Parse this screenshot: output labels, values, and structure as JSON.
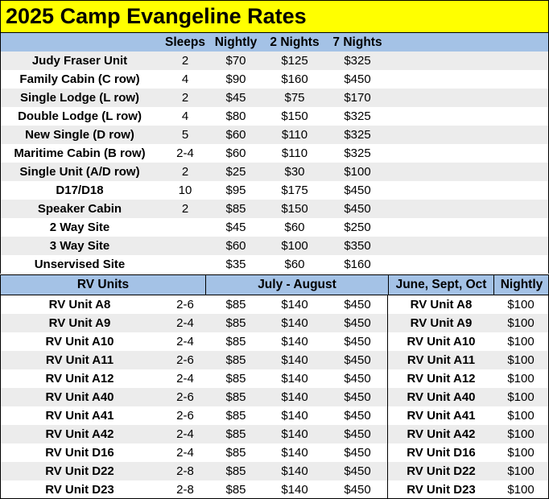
{
  "title": "2025 Camp Evangeline Rates",
  "header": {
    "sleeps": "Sleeps",
    "nightly": "Nightly",
    "two_nights": "2 Nights",
    "seven_nights": "7 Nights"
  },
  "units": [
    {
      "name": "Judy Fraser Unit",
      "sleeps": "2",
      "nightly": "$70",
      "two": "$125",
      "seven": "$325"
    },
    {
      "name": "Family Cabin (C row)",
      "sleeps": "4",
      "nightly": "$90",
      "two": "$160",
      "seven": "$450"
    },
    {
      "name": "Single Lodge (L row)",
      "sleeps": "2",
      "nightly": "$45",
      "two": "$75",
      "seven": "$170"
    },
    {
      "name": "Double Lodge (L row)",
      "sleeps": "4",
      "nightly": "$80",
      "two": "$150",
      "seven": "$325"
    },
    {
      "name": "New Single  (D row)",
      "sleeps": "5",
      "nightly": "$60",
      "two": "$110",
      "seven": "$325"
    },
    {
      "name": "Maritime Cabin (B row)",
      "sleeps": "2-4",
      "nightly": "$60",
      "two": "$110",
      "seven": "$325"
    },
    {
      "name": "Single Unit (A/D row)",
      "sleeps": "2",
      "nightly": "$25",
      "two": "$30",
      "seven": "$100"
    },
    {
      "name": "D17/D18",
      "sleeps": "10",
      "nightly": "$95",
      "two": "$175",
      "seven": "$450"
    },
    {
      "name": "Speaker Cabin",
      "sleeps": "2",
      "nightly": "$85",
      "two": "$150",
      "seven": "$450"
    },
    {
      "name": "2 Way Site",
      "sleeps": "",
      "nightly": "$45",
      "two": "$60",
      "seven": "$250"
    },
    {
      "name": "3 Way Site",
      "sleeps": "",
      "nightly": "$60",
      "two": "$100",
      "seven": "$350"
    },
    {
      "name": "Unservised Site",
      "sleeps": "",
      "nightly": "$35",
      "two": "$60",
      "seven": "$160"
    }
  ],
  "rv_header": {
    "units": "RV Units",
    "summer": "July - August",
    "off_season": "June, Sept, Oct",
    "nightly": "Nightly"
  },
  "rv_units": [
    {
      "name": "RV Unit A8",
      "sleeps": "2-6",
      "nightly": "$85",
      "two": "$140",
      "seven": "$450",
      "off_name": "RV Unit A8",
      "off_nightly": "$100"
    },
    {
      "name": "RV Unit A9",
      "sleeps": "2-4",
      "nightly": "$85",
      "two": "$140",
      "seven": "$450",
      "off_name": "RV Unit A9",
      "off_nightly": "$100"
    },
    {
      "name": "RV Unit A10",
      "sleeps": "2-4",
      "nightly": "$85",
      "two": "$140",
      "seven": "$450",
      "off_name": "RV Unit A10",
      "off_nightly": "$100"
    },
    {
      "name": "RV Unit A11",
      "sleeps": "2-6",
      "nightly": "$85",
      "two": "$140",
      "seven": "$450",
      "off_name": "RV Unit A11",
      "off_nightly": "$100"
    },
    {
      "name": "RV Unit A12",
      "sleeps": "2-4",
      "nightly": "$85",
      "two": "$140",
      "seven": "$450",
      "off_name": "RV Unit A12",
      "off_nightly": "$100"
    },
    {
      "name": "RV Unit A40",
      "sleeps": "2-6",
      "nightly": "$85",
      "two": "$140",
      "seven": "$450",
      "off_name": "RV Unit A40",
      "off_nightly": "$100"
    },
    {
      "name": "RV Unit A41",
      "sleeps": "2-6",
      "nightly": "$85",
      "two": "$140",
      "seven": "$450",
      "off_name": "RV Unit A41",
      "off_nightly": "$100"
    },
    {
      "name": "RV Unit A42",
      "sleeps": "2-4",
      "nightly": "$85",
      "two": "$140",
      "seven": "$450",
      "off_name": "RV Unit A42",
      "off_nightly": "$100"
    },
    {
      "name": "RV Unit D16",
      "sleeps": "2-4",
      "nightly": "$85",
      "two": "$140",
      "seven": "$450",
      "off_name": "RV Unit D16",
      "off_nightly": "$100"
    },
    {
      "name": "RV Unit D22",
      "sleeps": "2-8",
      "nightly": "$85",
      "two": "$140",
      "seven": "$450",
      "off_name": "RV Unit D22",
      "off_nightly": "$100"
    },
    {
      "name": "RV Unit D23",
      "sleeps": "2-8",
      "nightly": "$85",
      "two": "$140",
      "seven": "$450",
      "off_name": "RV Unit D23",
      "off_nightly": "$100"
    }
  ]
}
